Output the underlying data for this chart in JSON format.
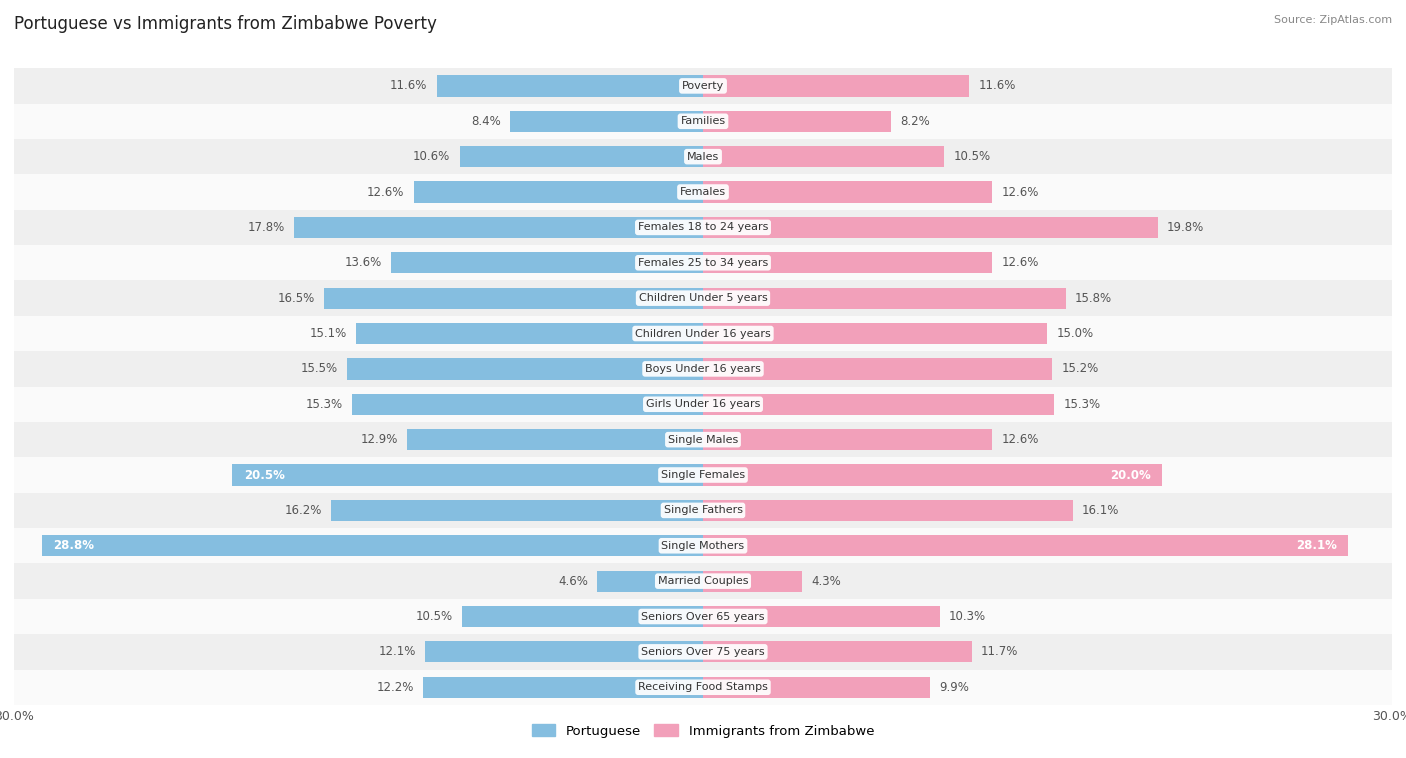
{
  "title": "Portuguese vs Immigrants from Zimbabwe Poverty",
  "source": "Source: ZipAtlas.com",
  "categories": [
    "Poverty",
    "Families",
    "Males",
    "Females",
    "Females 18 to 24 years",
    "Females 25 to 34 years",
    "Children Under 5 years",
    "Children Under 16 years",
    "Boys Under 16 years",
    "Girls Under 16 years",
    "Single Males",
    "Single Females",
    "Single Fathers",
    "Single Mothers",
    "Married Couples",
    "Seniors Over 65 years",
    "Seniors Over 75 years",
    "Receiving Food Stamps"
  ],
  "portuguese": [
    11.6,
    8.4,
    10.6,
    12.6,
    17.8,
    13.6,
    16.5,
    15.1,
    15.5,
    15.3,
    12.9,
    20.5,
    16.2,
    28.8,
    4.6,
    10.5,
    12.1,
    12.2
  ],
  "zimbabwe": [
    11.6,
    8.2,
    10.5,
    12.6,
    19.8,
    12.6,
    15.8,
    15.0,
    15.2,
    15.3,
    12.6,
    20.0,
    16.1,
    28.1,
    4.3,
    10.3,
    11.7,
    9.9
  ],
  "blue_color": "#85BEE0",
  "pink_color": "#F2A0BA",
  "bg_row_light": "#EFEFEF",
  "bg_row_white": "#FAFAFA",
  "bar_height": 0.6,
  "max_val": 30.0,
  "label_fontsize": 8.5,
  "category_fontsize": 8.0,
  "title_fontsize": 12,
  "source_fontsize": 8,
  "legend_label_portuguese": "Portuguese",
  "legend_label_zimbabwe": "Immigrants from Zimbabwe"
}
